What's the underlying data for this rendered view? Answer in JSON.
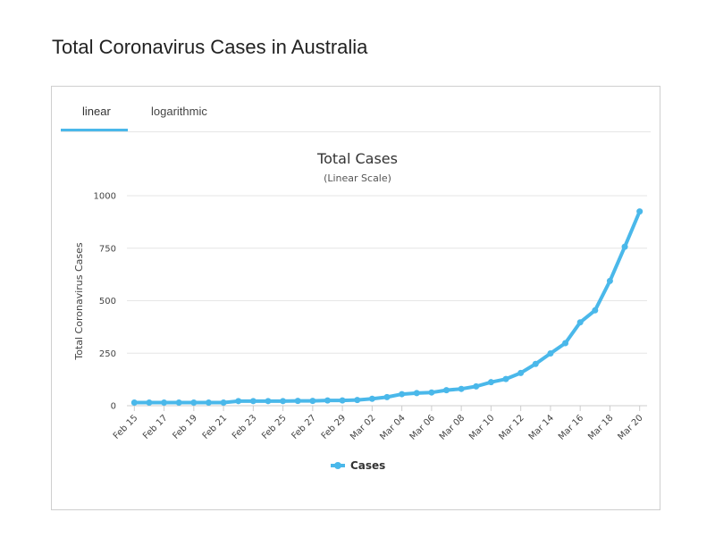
{
  "page_title": "Total Coronavirus Cases in Australia",
  "tabs": [
    {
      "label": "linear",
      "active": true
    },
    {
      "label": "logarithmic",
      "active": false
    }
  ],
  "colors": {
    "accent": "#4ab8ea",
    "grid": "#e6e6e6",
    "text": "#333333"
  },
  "chart_data": {
    "type": "line",
    "title": "Total Cases",
    "subtitle": "(Linear Scale)",
    "xlabel": "",
    "ylabel": "Total Coronavirus Cases",
    "ylim": [
      0,
      1000
    ],
    "y_ticks": [
      0,
      250,
      500,
      750,
      1000
    ],
    "grid": true,
    "legend_position": "bottom-center",
    "x": [
      "Feb 15",
      "Feb 16",
      "Feb 17",
      "Feb 18",
      "Feb 19",
      "Feb 20",
      "Feb 21",
      "Feb 22",
      "Feb 23",
      "Feb 24",
      "Feb 25",
      "Feb 26",
      "Feb 27",
      "Feb 28",
      "Feb 29",
      "Mar 01",
      "Mar 02",
      "Mar 03",
      "Mar 04",
      "Mar 05",
      "Mar 06",
      "Mar 07",
      "Mar 08",
      "Mar 09",
      "Mar 10",
      "Mar 11",
      "Mar 12",
      "Mar 13",
      "Mar 14",
      "Mar 15",
      "Mar 16",
      "Mar 17",
      "Mar 18",
      "Mar 19",
      "Mar 20"
    ],
    "x_tick_labels": [
      "Feb 15",
      "Feb 17",
      "Feb 19",
      "Feb 21",
      "Feb 23",
      "Feb 25",
      "Feb 27",
      "Feb 29",
      "Mar 02",
      "Mar 04",
      "Mar 06",
      "Mar 08",
      "Mar 10",
      "Mar 12",
      "Mar 14",
      "Mar 16",
      "Mar 18",
      "Mar 20"
    ],
    "series": [
      {
        "name": "Cases",
        "color": "#4ab8ea",
        "values": [
          15,
          15,
          15,
          15,
          15,
          15,
          15,
          22,
          22,
          22,
          22,
          23,
          23,
          25,
          25,
          27,
          33,
          41,
          55,
          60,
          63,
          74,
          80,
          92,
          112,
          127,
          156,
          199,
          249,
          298,
          397,
          454,
          594,
          757,
          925
        ]
      }
    ]
  }
}
